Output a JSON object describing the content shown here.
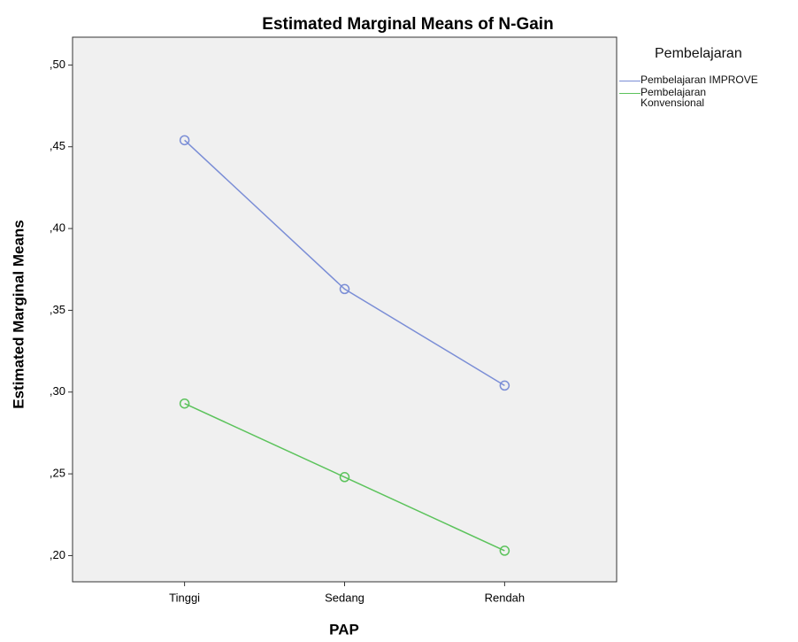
{
  "chart_data": {
    "type": "line",
    "title": "Estimated Marginal Means of N-Gain",
    "x_label": "PAP",
    "y_label": "Estimated Marginal Means",
    "legend_title": "Pembelajaran",
    "categories": [
      "Tinggi",
      "Sedang",
      "Rendah"
    ],
    "series": [
      {
        "name": "Pembelajaran IMPROVE",
        "color": "#7b8ed6",
        "values": [
          0.454,
          0.363,
          0.304
        ]
      },
      {
        "name": "Pembelajaran Konvensional",
        "color": "#5cc35c",
        "values": [
          0.293,
          0.248,
          0.203
        ]
      }
    ],
    "ylim": [
      0.184,
      0.517
    ],
    "yticks": [
      {
        "value": 0.2,
        "label": ",20"
      },
      {
        "value": 0.25,
        "label": ",25"
      },
      {
        "value": 0.3,
        "label": ",30"
      },
      {
        "value": 0.35,
        "label": ",35"
      },
      {
        "value": 0.4,
        "label": ",40"
      },
      {
        "value": 0.45,
        "label": ",45"
      },
      {
        "value": 0.5,
        "label": ",50"
      }
    ],
    "legend_position": "right"
  }
}
